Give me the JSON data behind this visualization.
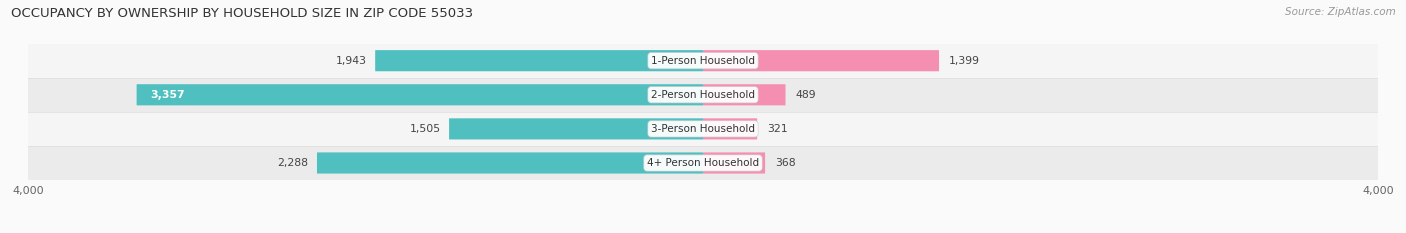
{
  "title": "OCCUPANCY BY OWNERSHIP BY HOUSEHOLD SIZE IN ZIP CODE 55033",
  "source": "Source: ZipAtlas.com",
  "categories": [
    "1-Person Household",
    "2-Person Household",
    "3-Person Household",
    "4+ Person Household"
  ],
  "owner_values": [
    1943,
    3357,
    1505,
    2288
  ],
  "renter_values": [
    1399,
    489,
    321,
    368
  ],
  "owner_color": "#50BFBF",
  "renter_color": "#F48FB1",
  "background_color": "#FAFAFA",
  "row_bg_even": "#F2F2F2",
  "row_bg_odd": "#E8E8E8",
  "xlim": 4000,
  "bar_height": 0.62,
  "label_fontsize": 8.0,
  "title_fontsize": 9.5,
  "source_fontsize": 7.5,
  "legend_fontsize": 8.0,
  "category_fontsize": 7.5,
  "value_fontsize": 7.8
}
